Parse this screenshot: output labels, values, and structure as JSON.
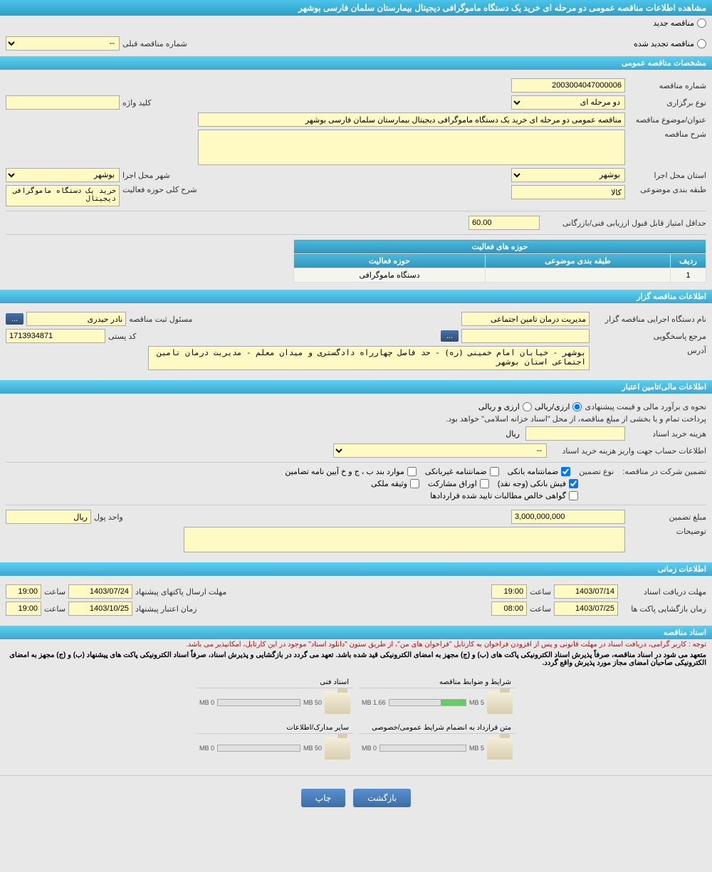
{
  "header": {
    "title": "مشاهده اطلاعات مناقصه عمومی دو مرحله ای خرید یک دستگاه ماموگرافی دیجیتال بیمارستان سلمان فارسی بوشهر"
  },
  "radios": {
    "new_label": "مناقصه جدید",
    "renew_label": "مناقصه تجدید شده"
  },
  "prev_number": {
    "label": "شماره مناقصه قبلی",
    "value": "--"
  },
  "sections": {
    "general": "مشخصات مناقصه عمومی",
    "organizer": "اطلاعات مناقصه گزار",
    "finance": "اطلاعات مالی/تامین اعتبار",
    "timing": "اطلاعات زمانی",
    "documents": "اسناد مناقصه"
  },
  "general": {
    "tender_no_label": "شماره مناقصه",
    "tender_no": "2003004047000006",
    "holding_type_label": "نوع برگزاری",
    "holding_type": "دو مرحله ای",
    "keyword_label": "کلید واژه",
    "keyword": "",
    "subject_label": "عنوان/موضوع مناقصه",
    "subject": "مناقصه عمومی دو مرحله ای خرید یک دستگاه ماموگرافی دیجیتال بیمارستان سلمان فارسی بوشهر",
    "desc_label": "شرح مناقصه",
    "desc": "",
    "province_label": "استان محل اجرا",
    "province": "بوشهر",
    "city_label": "شهر محل اجرا",
    "city": "بوشهر",
    "category_label": "طبقه بندی موضوعی",
    "category": "کالا",
    "activity_desc_label": "شرح کلی حوزه فعالیت",
    "activity_desc": "خرید یک دستگاه ماموگرافی دیجیتال",
    "min_score_label": "حداقل امتیاز قابل قبول ارزیابی فنی/بازرگانی",
    "min_score": "60.00"
  },
  "activity_table": {
    "title": "حوزه های فعالیت",
    "col1": "ردیف",
    "col2": "طبقه بندی موضوعی",
    "col3": "حوزه فعالیت",
    "row1_c1": "1",
    "row1_c2": "",
    "row1_c3": "دستگاه ماموگرافی"
  },
  "organizer": {
    "name_label": "نام دستگاه اجرایی مناقصه گزار",
    "name": "مدیریت درمان تامین اجتماعی",
    "responsible_label": "مسئول ثبت مناقصه",
    "responsible": "نادر حیدری",
    "contact_label": "مرجع پاسخگویی",
    "contact": "",
    "postal_label": "کد پستی",
    "postal": "1713934871",
    "address_label": "آدرس",
    "address": "بوشهر - خیابان امام خمینی (ره) - حد فاصل چهارراه دادگستری و میدان معلم - مدیریت درمان تامین اجتماعی استان بوشهر",
    "btn_dots": "..."
  },
  "finance": {
    "estimate_label": "نحوه ی برآورد مالی و قیمت پیشنهادی",
    "estimate_opt1": "ارزی/ریالی",
    "estimate_opt2": "ارزی و ریالی",
    "payment_note": "پرداخت تمام و یا بخشی از مبلغ مناقصه، از محل \"اسناد خزانه اسلامی\" خواهد بود.",
    "purchase_cost_label": "هزینه خرید اسناد",
    "purchase_cost": "",
    "currency_rial": "ریال",
    "account_info_label": "اطلاعات حساب جهت واریز هزینه خرید اسناد",
    "account_info": "--",
    "guarantee_label": "تضمین شرکت در مناقصه:",
    "guarantee_type_label": "نوع تضمین",
    "chk1": "ضمانتنامه بانکی",
    "chk2": "ضمانتنامه غیربانکی",
    "chk3": "موارد بند ب ، ج و خ آیین نامه تضامین",
    "chk4": "فیش بانکی (وجه نقد)",
    "chk5": "اوراق مشارکت",
    "chk6": "وثیقه ملکی",
    "chk7": "گواهی خالص مطالبات تایید شده قراردادها",
    "amount_label": "مبلغ تضمین",
    "amount": "3,000,000,000",
    "unit_label": "واحد پول",
    "unit": "ریال",
    "notes_label": "توضیحات",
    "notes": ""
  },
  "timing": {
    "receive_label": "مهلت دریافت اسناد",
    "receive_date": "1403/07/14",
    "receive_time_label": "ساعت",
    "receive_time": "19:00",
    "send_label": "مهلت ارسال پاکتهای پیشنهاد",
    "send_date": "1403/07/24",
    "send_time": "19:00",
    "open_label": "زمان بازگشایی پاکت ها",
    "open_date": "1403/07/25",
    "open_time": "08:00",
    "validity_label": "زمان اعتبار پیشنهاد",
    "validity_date": "1403/10/25",
    "validity_time": "19:00"
  },
  "documents": {
    "note1": "توجه : کاربر گرامی، دریافت اسناد در مهلت قانونی و پس از افزودن فراخوان به کارتابل \"فراخوان های من\"، از طریق ستون \"دانلود اسناد\" موجود در این کارتابل، امکانپذیر می باشد.",
    "note2": "متعهد می شود در اسناد مناقصه، صرفاً پذیرش اسناد الکترونیکی پاکت های (ب) و (ج) مجهز به امضای الکترونیکی قید شده باشد. تعهد می گردد در بازگشایی و پذیرش اسناد، صرفاً اسناد الکترونیکی پاکت های پیشنهاد (ب) و (ج) مجهز به امضای الکترونیکی صاحبان امضای مجاز مورد پذیرش واقع گردد.",
    "folders": [
      {
        "title": "شرایط و ضوابط مناقصه",
        "used": "1.66 MB",
        "total": "5 MB",
        "fill": 33
      },
      {
        "title": "اسناد فنی",
        "used": "0 MB",
        "total": "50 MB",
        "fill": 0
      },
      {
        "title": "متن قرارداد به انضمام شرایط عمومی/خصوصی",
        "used": "0 MB",
        "total": "5 MB",
        "fill": 0
      },
      {
        "title": "سایر مدارک/اطلاعات",
        "used": "0 MB",
        "total": "50 MB",
        "fill": 0
      }
    ]
  },
  "buttons": {
    "back": "بازگشت",
    "print": "چاپ"
  }
}
